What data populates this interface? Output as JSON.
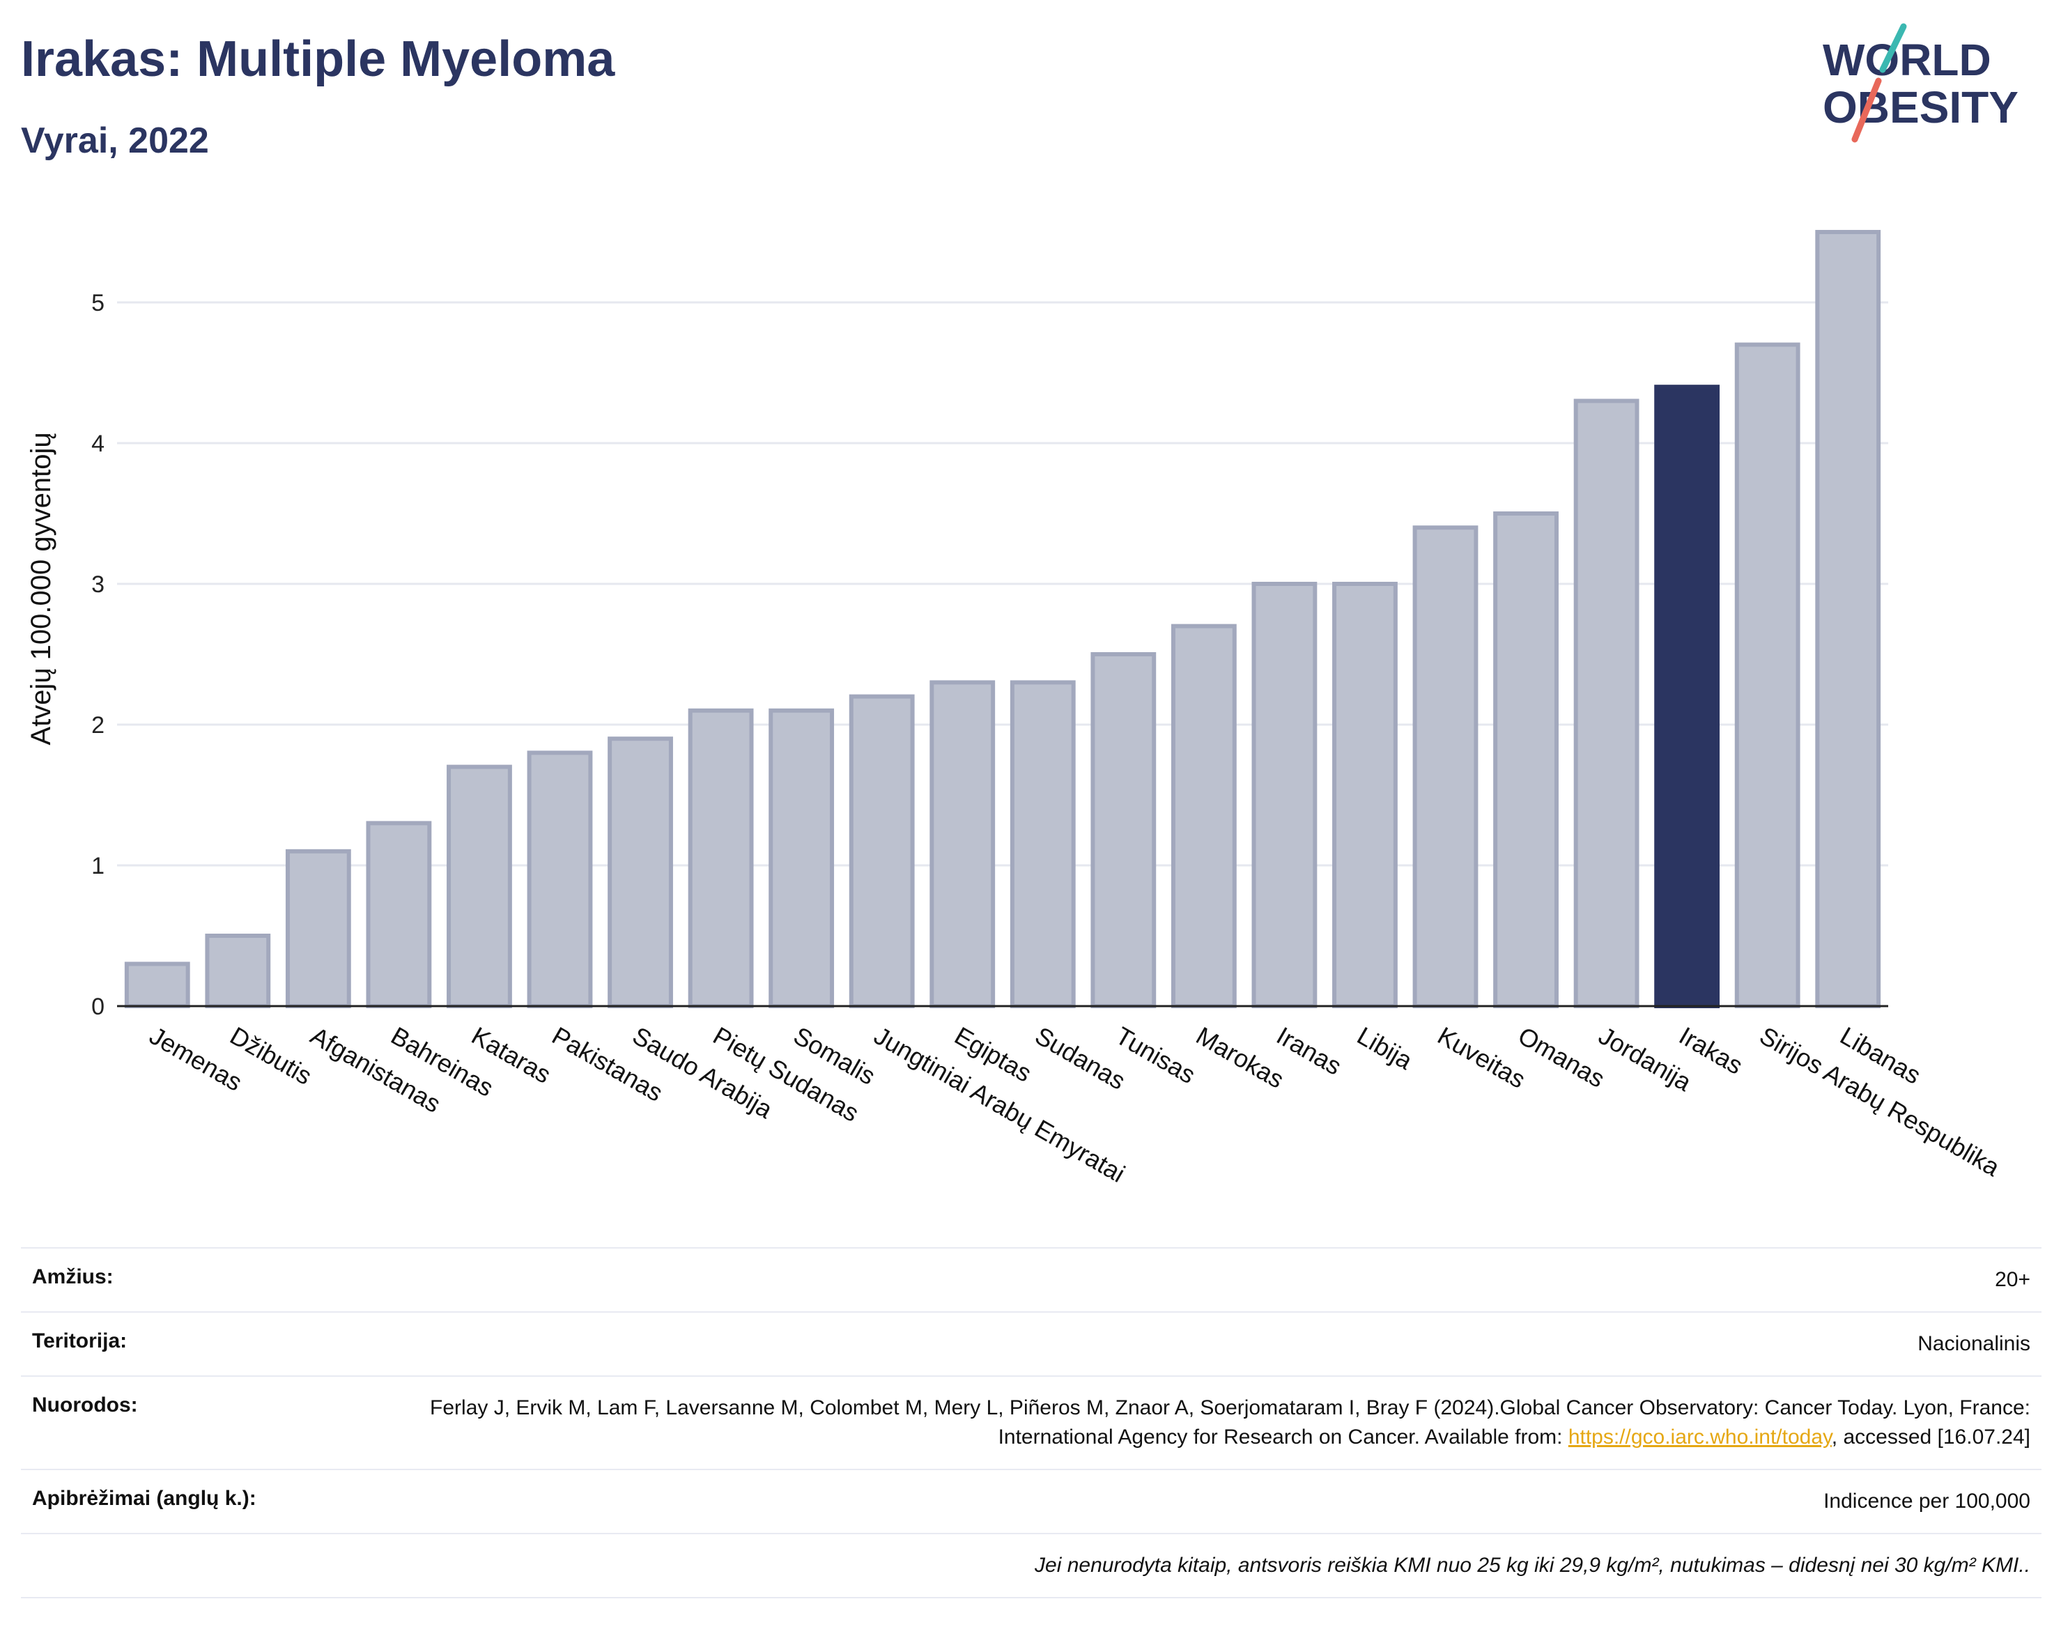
{
  "header": {
    "title": "Irakas: Multiple Myeloma",
    "subtitle": "Vyrai, 2022"
  },
  "logo": {
    "line1": "WORLD",
    "line2": "OBESITY",
    "colors": {
      "text": "#2b3561",
      "slash_top": "#3bb8b1",
      "slash_bottom": "#e8685a"
    }
  },
  "colors": {
    "highlight": "#2b3561",
    "bar": "#bcc1cf",
    "bar_outline": "#a2a8bd",
    "grid": "#e6e8ef",
    "axis": "#222222"
  },
  "chart_data": {
    "type": "bar",
    "categories": [
      "Jemenas",
      "Džibutis",
      "Afganistanas",
      "Bahreinas",
      "Kataras",
      "Pakistanas",
      "Saudo Arabija",
      "Pietų Sudanas",
      "Somalis",
      "Jungtiniai Arabų Emyratai",
      "Egiptas",
      "Sudanas",
      "Tunisas",
      "Marokas",
      "Iranas",
      "Libija",
      "Kuveitas",
      "Omanas",
      "Jordanija",
      "Irakas",
      "Sirijos Arabų Respublika",
      "Libanas"
    ],
    "values": [
      0.3,
      0.5,
      1.1,
      1.3,
      1.7,
      1.8,
      1.9,
      2.1,
      2.1,
      2.2,
      2.3,
      2.3,
      2.5,
      2.7,
      3.0,
      3.0,
      3.4,
      3.5,
      4.3,
      4.4,
      4.7,
      5.5
    ],
    "highlight": "Irakas",
    "title": "Irakas: Multiple Myeloma",
    "subtitle": "Vyrai, 2022",
    "xlabel": "",
    "ylabel": "Atvejų 100.000 gyventojų",
    "yticks": [
      0,
      1,
      2,
      3,
      4,
      5
    ],
    "ylim": [
      0,
      5.8
    ],
    "grid": true
  },
  "info": {
    "age_label": "Amžius:",
    "age_value": "20+",
    "territory_label": "Teritorija:",
    "territory_value": "Nacionalinis",
    "refs_label": "Nuorodos:",
    "refs_text_1": "Ferlay J, Ervik M, Lam F, Laversanne M, Colombet M, Mery L, Piñeros M, Znaor A, Soerjomataram I, Bray F (2024).Global Cancer Observatory: Cancer Today. Lyon, France: International Agency for Research on Cancer. Available from: ",
    "refs_link": "https://gco.iarc.who.int/today",
    "refs_text_2": ", accessed [16.07.24]",
    "definitions_label": "Apibrėžimai (anglų k.):",
    "definitions_value": "Indicence per 100,000",
    "note": "Jei nenurodyta kitaip, antsvoris reiškia KMI nuo 25 kg iki 29,9 kg/m², nutukimas – didesnį nei 30 kg/m² KMI.."
  }
}
